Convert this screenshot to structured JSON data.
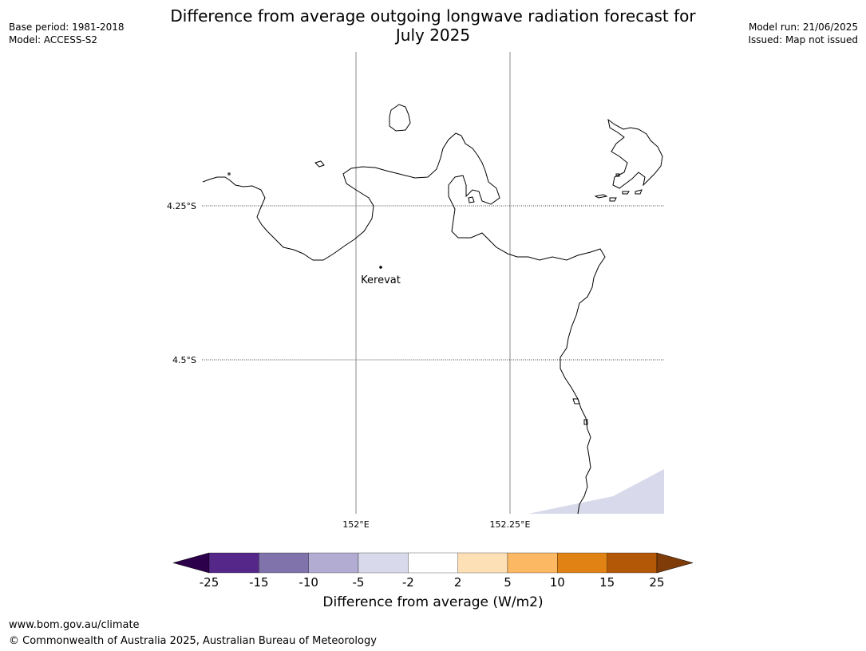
{
  "title_line1": "Difference from average outgoing longwave radiation forecast for",
  "title_line2": "July 2025",
  "base_period": "Base period: 1981-2018",
  "model": "Model: ACCESS-S2",
  "model_run": "Model run: 21/06/2025",
  "issued": "Issued: Map not issued",
  "lat_labels": [
    "4.25°S",
    "4.5°S"
  ],
  "lon_labels": [
    "152°E",
    "152.25°E"
  ],
  "place": {
    "name": "Kerevat"
  },
  "colorbar": {
    "label": "Difference from average (W/m2)",
    "ticks": [
      "-25",
      "-15",
      "-10",
      "-5",
      "-2",
      "2",
      "5",
      "10",
      "15",
      "25"
    ],
    "colors": [
      "#2d004b",
      "#542788",
      "#8073ac",
      "#b2abd2",
      "#d8daeb",
      "#ffffff",
      "#fee0b6",
      "#fdb863",
      "#e08214",
      "#b35806",
      "#7f3b08"
    ]
  },
  "footer_url": "www.bom.gov.au/climate",
  "footer_copyright": "© Commonwealth of Australia 2025, Australian Bureau of Meteorology"
}
